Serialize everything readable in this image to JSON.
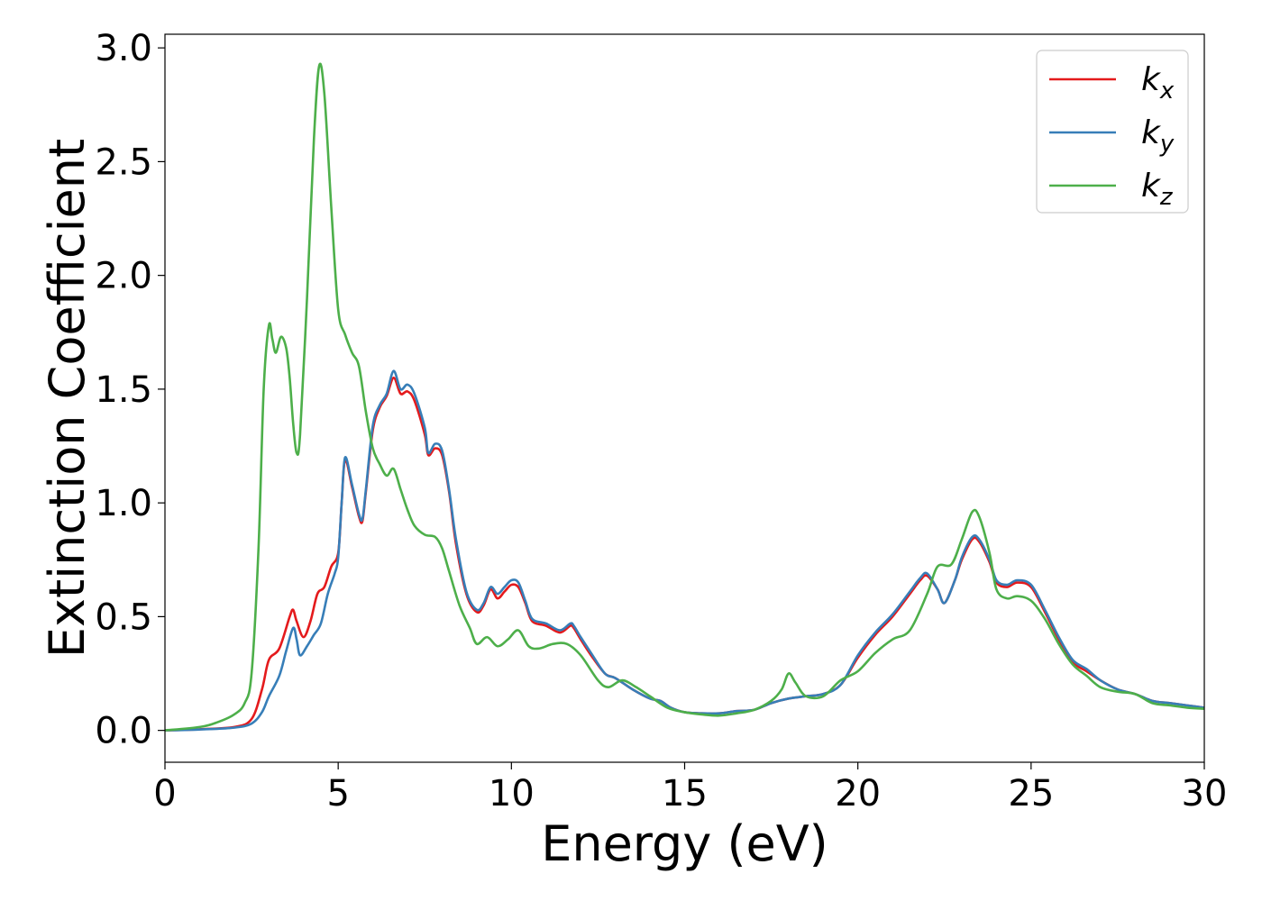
{
  "chart_data": {
    "type": "line",
    "title": "",
    "xlabel": "Energy (eV)",
    "ylabel": "Extinction Coefficient",
    "xlim": [
      0,
      30
    ],
    "ylim": [
      -0.14,
      3.06
    ],
    "xticks": [
      0,
      5,
      10,
      15,
      20,
      25,
      30
    ],
    "xtick_labels": [
      "0",
      "5",
      "10",
      "15",
      "20",
      "25",
      "30"
    ],
    "yticks": [
      0.0,
      0.5,
      1.0,
      1.5,
      2.0,
      2.5,
      3.0
    ],
    "ytick_labels": [
      "0.0",
      "0.5",
      "1.0",
      "1.5",
      "2.0",
      "2.5",
      "3.0"
    ],
    "grid": false,
    "legend_position": "top-right",
    "series": [
      {
        "name": "k",
        "subscript": "x",
        "color": "#e41a1c",
        "points": [
          [
            0,
            0
          ],
          [
            1,
            0.005
          ],
          [
            2,
            0.015
          ],
          [
            2.5,
            0.05
          ],
          [
            2.8,
            0.18
          ],
          [
            3.0,
            0.31
          ],
          [
            3.3,
            0.36
          ],
          [
            3.6,
            0.5
          ],
          [
            3.7,
            0.53
          ],
          [
            3.8,
            0.48
          ],
          [
            4.0,
            0.41
          ],
          [
            4.2,
            0.48
          ],
          [
            4.4,
            0.6
          ],
          [
            4.6,
            0.63
          ],
          [
            4.8,
            0.72
          ],
          [
            5.0,
            0.78
          ],
          [
            5.1,
            1.0
          ],
          [
            5.2,
            1.19
          ],
          [
            5.4,
            1.07
          ],
          [
            5.6,
            0.94
          ],
          [
            5.7,
            0.92
          ],
          [
            5.8,
            1.05
          ],
          [
            6.0,
            1.32
          ],
          [
            6.2,
            1.42
          ],
          [
            6.4,
            1.47
          ],
          [
            6.6,
            1.55
          ],
          [
            6.8,
            1.48
          ],
          [
            7.0,
            1.49
          ],
          [
            7.2,
            1.45
          ],
          [
            7.5,
            1.3
          ],
          [
            7.6,
            1.21
          ],
          [
            7.8,
            1.24
          ],
          [
            8.0,
            1.21
          ],
          [
            8.2,
            1.05
          ],
          [
            8.4,
            0.82
          ],
          [
            8.7,
            0.6
          ],
          [
            9.0,
            0.52
          ],
          [
            9.2,
            0.55
          ],
          [
            9.4,
            0.62
          ],
          [
            9.6,
            0.58
          ],
          [
            9.8,
            0.61
          ],
          [
            10.0,
            0.64
          ],
          [
            10.2,
            0.63
          ],
          [
            10.4,
            0.56
          ],
          [
            10.6,
            0.48
          ],
          [
            11.0,
            0.46
          ],
          [
            11.4,
            0.43
          ],
          [
            11.7,
            0.46
          ],
          [
            11.8,
            0.45
          ],
          [
            12.0,
            0.4
          ],
          [
            12.3,
            0.33
          ],
          [
            12.7,
            0.25
          ],
          [
            13.0,
            0.23
          ],
          [
            13.5,
            0.18
          ],
          [
            14.0,
            0.14
          ],
          [
            14.3,
            0.13
          ],
          [
            14.6,
            0.1
          ],
          [
            15.0,
            0.08
          ],
          [
            15.5,
            0.075
          ],
          [
            16.0,
            0.075
          ],
          [
            16.5,
            0.085
          ],
          [
            17.0,
            0.09
          ],
          [
            17.5,
            0.12
          ],
          [
            18.0,
            0.14
          ],
          [
            18.5,
            0.15
          ],
          [
            19.0,
            0.16
          ],
          [
            19.5,
            0.2
          ],
          [
            20.0,
            0.32
          ],
          [
            20.5,
            0.42
          ],
          [
            21.0,
            0.5
          ],
          [
            21.5,
            0.6
          ],
          [
            21.8,
            0.66
          ],
          [
            22.0,
            0.68
          ],
          [
            22.3,
            0.62
          ],
          [
            22.5,
            0.56
          ],
          [
            22.8,
            0.66
          ],
          [
            23.0,
            0.75
          ],
          [
            23.3,
            0.84
          ],
          [
            23.5,
            0.83
          ],
          [
            23.8,
            0.74
          ],
          [
            24.0,
            0.65
          ],
          [
            24.3,
            0.63
          ],
          [
            24.6,
            0.65
          ],
          [
            25.0,
            0.63
          ],
          [
            25.4,
            0.52
          ],
          [
            25.8,
            0.4
          ],
          [
            26.2,
            0.3
          ],
          [
            26.6,
            0.26
          ],
          [
            27.0,
            0.22
          ],
          [
            27.5,
            0.18
          ],
          [
            28.0,
            0.16
          ],
          [
            28.5,
            0.13
          ],
          [
            29.0,
            0.12
          ],
          [
            29.5,
            0.11
          ],
          [
            30,
            0.1
          ]
        ]
      },
      {
        "name": "k",
        "subscript": "y",
        "color": "#377eb8",
        "points": [
          [
            0,
            0
          ],
          [
            1,
            0.004
          ],
          [
            2,
            0.012
          ],
          [
            2.5,
            0.03
          ],
          [
            2.8,
            0.08
          ],
          [
            3.0,
            0.15
          ],
          [
            3.3,
            0.24
          ],
          [
            3.5,
            0.35
          ],
          [
            3.7,
            0.45
          ],
          [
            3.8,
            0.4
          ],
          [
            3.9,
            0.33
          ],
          [
            4.1,
            0.37
          ],
          [
            4.3,
            0.42
          ],
          [
            4.5,
            0.47
          ],
          [
            4.7,
            0.6
          ],
          [
            4.9,
            0.69
          ],
          [
            5.0,
            0.76
          ],
          [
            5.1,
            1.0
          ],
          [
            5.2,
            1.2
          ],
          [
            5.4,
            1.08
          ],
          [
            5.6,
            0.95
          ],
          [
            5.7,
            0.93
          ],
          [
            5.8,
            1.06
          ],
          [
            6.0,
            1.34
          ],
          [
            6.2,
            1.43
          ],
          [
            6.4,
            1.48
          ],
          [
            6.6,
            1.58
          ],
          [
            6.8,
            1.5
          ],
          [
            7.0,
            1.52
          ],
          [
            7.2,
            1.48
          ],
          [
            7.5,
            1.33
          ],
          [
            7.6,
            1.22
          ],
          [
            7.8,
            1.26
          ],
          [
            8.0,
            1.23
          ],
          [
            8.2,
            1.06
          ],
          [
            8.4,
            0.84
          ],
          [
            8.7,
            0.61
          ],
          [
            9.0,
            0.53
          ],
          [
            9.2,
            0.56
          ],
          [
            9.4,
            0.63
          ],
          [
            9.6,
            0.6
          ],
          [
            9.8,
            0.63
          ],
          [
            10.0,
            0.66
          ],
          [
            10.2,
            0.65
          ],
          [
            10.4,
            0.57
          ],
          [
            10.6,
            0.49
          ],
          [
            11.0,
            0.47
          ],
          [
            11.4,
            0.44
          ],
          [
            11.7,
            0.47
          ],
          [
            11.8,
            0.46
          ],
          [
            12.0,
            0.41
          ],
          [
            12.3,
            0.34
          ],
          [
            12.7,
            0.25
          ],
          [
            13.0,
            0.23
          ],
          [
            13.5,
            0.18
          ],
          [
            14.0,
            0.14
          ],
          [
            14.3,
            0.13
          ],
          [
            14.6,
            0.1
          ],
          [
            15.0,
            0.08
          ],
          [
            15.5,
            0.075
          ],
          [
            16.0,
            0.075
          ],
          [
            16.5,
            0.085
          ],
          [
            17.0,
            0.09
          ],
          [
            17.5,
            0.12
          ],
          [
            18.0,
            0.14
          ],
          [
            18.5,
            0.15
          ],
          [
            19.0,
            0.16
          ],
          [
            19.5,
            0.2
          ],
          [
            20.0,
            0.33
          ],
          [
            20.5,
            0.43
          ],
          [
            21.0,
            0.51
          ],
          [
            21.5,
            0.61
          ],
          [
            21.8,
            0.67
          ],
          [
            22.0,
            0.69
          ],
          [
            22.3,
            0.62
          ],
          [
            22.5,
            0.56
          ],
          [
            22.8,
            0.66
          ],
          [
            23.0,
            0.76
          ],
          [
            23.3,
            0.85
          ],
          [
            23.5,
            0.84
          ],
          [
            23.8,
            0.75
          ],
          [
            24.0,
            0.66
          ],
          [
            24.3,
            0.64
          ],
          [
            24.6,
            0.66
          ],
          [
            25.0,
            0.64
          ],
          [
            25.4,
            0.53
          ],
          [
            25.8,
            0.41
          ],
          [
            26.2,
            0.31
          ],
          [
            26.6,
            0.27
          ],
          [
            27.0,
            0.22
          ],
          [
            27.5,
            0.18
          ],
          [
            28.0,
            0.16
          ],
          [
            28.5,
            0.13
          ],
          [
            29.0,
            0.12
          ],
          [
            29.5,
            0.11
          ],
          [
            30,
            0.1
          ]
        ]
      },
      {
        "name": "k",
        "subscript": "z",
        "color": "#4daf4a",
        "points": [
          [
            0,
            0
          ],
          [
            1,
            0.015
          ],
          [
            1.5,
            0.035
          ],
          [
            2.0,
            0.07
          ],
          [
            2.3,
            0.12
          ],
          [
            2.5,
            0.25
          ],
          [
            2.7,
            0.8
          ],
          [
            2.85,
            1.5
          ],
          [
            3.0,
            1.78
          ],
          [
            3.1,
            1.72
          ],
          [
            3.2,
            1.66
          ],
          [
            3.35,
            1.73
          ],
          [
            3.5,
            1.68
          ],
          [
            3.6,
            1.55
          ],
          [
            3.7,
            1.35
          ],
          [
            3.8,
            1.22
          ],
          [
            3.9,
            1.3
          ],
          [
            4.1,
            1.9
          ],
          [
            4.3,
            2.6
          ],
          [
            4.45,
            2.92
          ],
          [
            4.6,
            2.8
          ],
          [
            4.8,
            2.3
          ],
          [
            5.0,
            1.85
          ],
          [
            5.2,
            1.74
          ],
          [
            5.4,
            1.66
          ],
          [
            5.6,
            1.6
          ],
          [
            5.8,
            1.4
          ],
          [
            6.0,
            1.24
          ],
          [
            6.2,
            1.17
          ],
          [
            6.4,
            1.12
          ],
          [
            6.6,
            1.15
          ],
          [
            6.8,
            1.06
          ],
          [
            7.0,
            0.97
          ],
          [
            7.2,
            0.9
          ],
          [
            7.5,
            0.86
          ],
          [
            7.8,
            0.85
          ],
          [
            8.0,
            0.8
          ],
          [
            8.2,
            0.7
          ],
          [
            8.5,
            0.55
          ],
          [
            8.8,
            0.45
          ],
          [
            9.0,
            0.38
          ],
          [
            9.3,
            0.41
          ],
          [
            9.6,
            0.37
          ],
          [
            9.9,
            0.4
          ],
          [
            10.2,
            0.44
          ],
          [
            10.5,
            0.37
          ],
          [
            10.8,
            0.36
          ],
          [
            11.2,
            0.38
          ],
          [
            11.6,
            0.38
          ],
          [
            12.0,
            0.33
          ],
          [
            12.5,
            0.22
          ],
          [
            12.8,
            0.19
          ],
          [
            13.2,
            0.22
          ],
          [
            13.6,
            0.19
          ],
          [
            14.0,
            0.15
          ],
          [
            14.5,
            0.1
          ],
          [
            15.0,
            0.08
          ],
          [
            15.5,
            0.07
          ],
          [
            16.0,
            0.065
          ],
          [
            16.5,
            0.075
          ],
          [
            17.0,
            0.09
          ],
          [
            17.5,
            0.13
          ],
          [
            17.8,
            0.18
          ],
          [
            18.0,
            0.25
          ],
          [
            18.2,
            0.21
          ],
          [
            18.5,
            0.15
          ],
          [
            19.0,
            0.15
          ],
          [
            19.5,
            0.22
          ],
          [
            20.0,
            0.26
          ],
          [
            20.5,
            0.34
          ],
          [
            21.0,
            0.4
          ],
          [
            21.5,
            0.44
          ],
          [
            22.0,
            0.6
          ],
          [
            22.3,
            0.72
          ],
          [
            22.7,
            0.73
          ],
          [
            23.0,
            0.84
          ],
          [
            23.3,
            0.96
          ],
          [
            23.5,
            0.94
          ],
          [
            23.8,
            0.78
          ],
          [
            24.0,
            0.62
          ],
          [
            24.3,
            0.58
          ],
          [
            24.6,
            0.59
          ],
          [
            25.0,
            0.57
          ],
          [
            25.4,
            0.49
          ],
          [
            25.8,
            0.38
          ],
          [
            26.2,
            0.29
          ],
          [
            26.6,
            0.24
          ],
          [
            27.0,
            0.19
          ],
          [
            27.5,
            0.17
          ],
          [
            28.0,
            0.16
          ],
          [
            28.5,
            0.12
          ],
          [
            29.0,
            0.11
          ],
          [
            29.5,
            0.1
          ],
          [
            30,
            0.095
          ]
        ]
      }
    ]
  }
}
